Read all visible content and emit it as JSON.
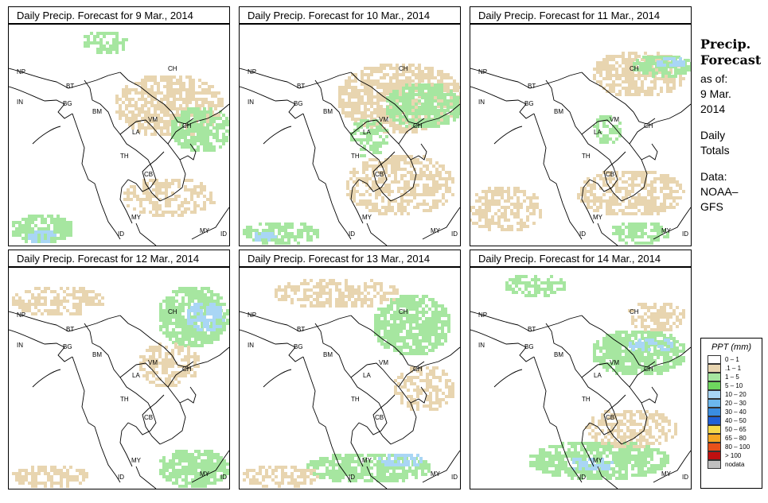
{
  "panels": [
    {
      "title": "Daily Precip. Forecast for  9 Mar., 2014"
    },
    {
      "title": "Daily Precip. Forecast for  10 Mar., 2014"
    },
    {
      "title": "Daily Precip. Forecast for  11 Mar., 2014"
    },
    {
      "title": "Daily Precip. Forecast for  12 Mar., 2014"
    },
    {
      "title": "Daily Precip. Forecast for  13 Mar., 2014"
    },
    {
      "title": "Daily Precip. Forecast for  14 Mar., 2014"
    }
  ],
  "country_labels": [
    "NP",
    "BT",
    "IN",
    "BG",
    "BM",
    "CH",
    "VM",
    "CH",
    "LA",
    "TH",
    "CB",
    "MY",
    "MY",
    "ID",
    "ID"
  ],
  "side_panel": {
    "heading_1": "Precip.",
    "heading_2": "Forecast",
    "as_of": "as of:",
    "date_1": "9 Mar.",
    "date_2": "2014",
    "totals_1": "Daily",
    "totals_2": "Totals",
    "data_1": "Data:",
    "data_2": "NOAA–",
    "data_3": "GFS"
  },
  "legend": {
    "title": "PPT (mm)",
    "items": [
      {
        "label": "0 – 1",
        "color": "#ffffff"
      },
      {
        "label": ".1 – 1",
        "color": "#e8d5b0"
      },
      {
        "label": "1 – 5",
        "color": "#a6e6a0"
      },
      {
        "label": "5 – 10",
        "color": "#6ed65e"
      },
      {
        "label": "10 – 20",
        "color": "#a9d6f5"
      },
      {
        "label": "20 – 30",
        "color": "#6cb8ee"
      },
      {
        "label": "30 – 40",
        "color": "#3a8de0"
      },
      {
        "label": "40 – 50",
        "color": "#1f5fd6"
      },
      {
        "label": "50 – 65",
        "color": "#f5d84a"
      },
      {
        "label": "65 – 80",
        "color": "#f5a623"
      },
      {
        "label": "80 – 100",
        "color": "#e8501a"
      },
      {
        "label": "> 100",
        "color": "#c01010"
      },
      {
        "label": "nodata",
        "color": "#c0c0c0"
      }
    ]
  },
  "colors": {
    "tan": "#e8d5b0",
    "light_green": "#a6e6a0",
    "green": "#6ed65e",
    "light_blue": "#a9d6f5",
    "blue": "#6cb8ee"
  }
}
